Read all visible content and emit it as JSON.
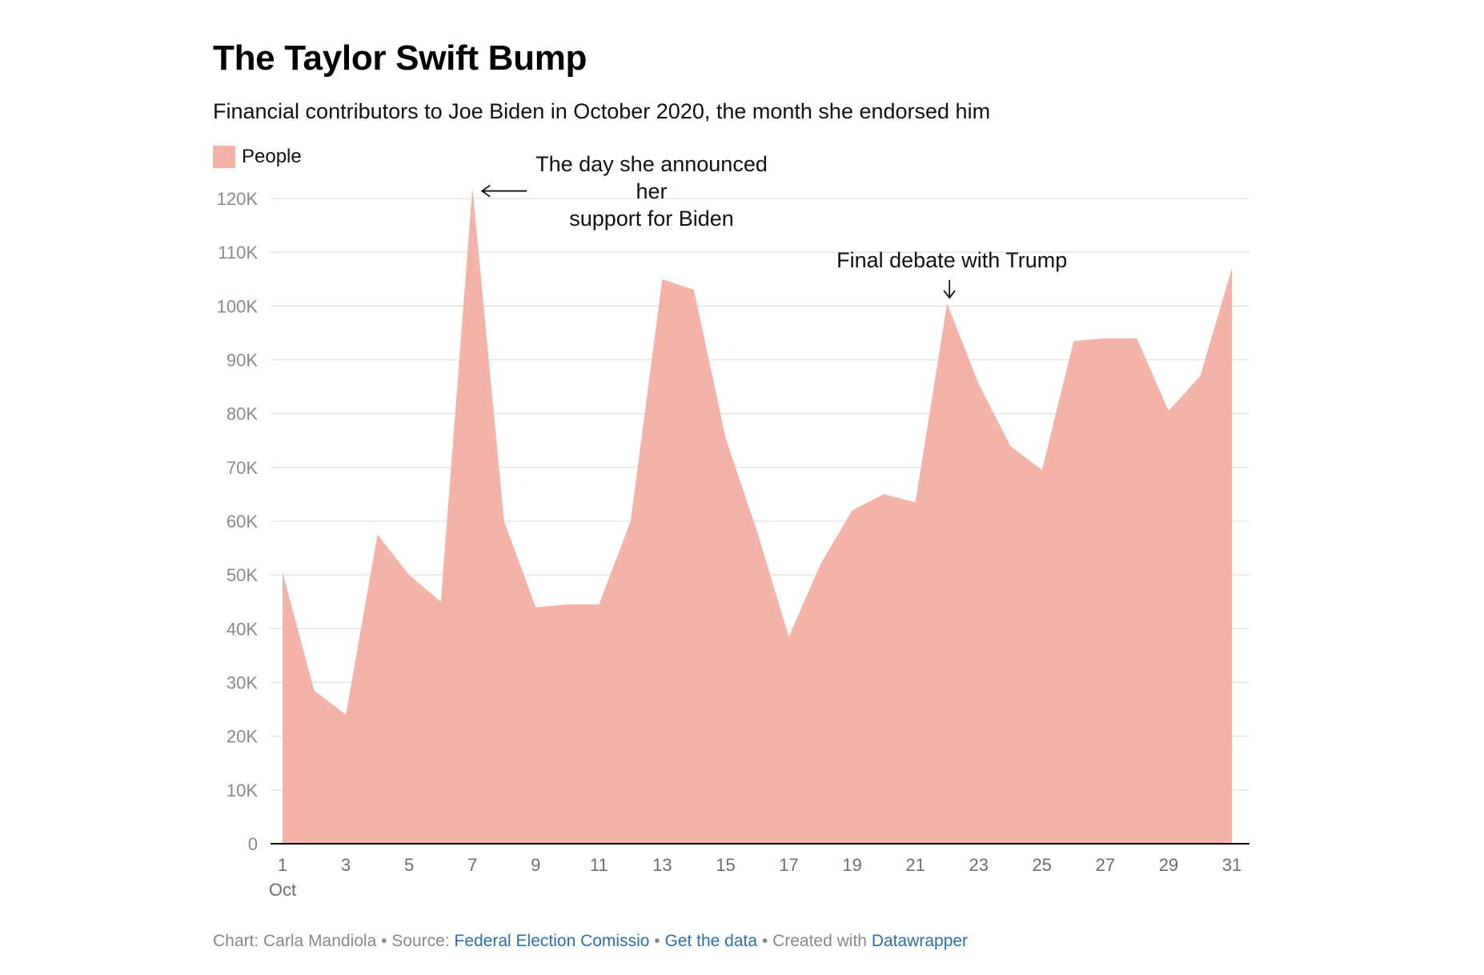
{
  "header": {
    "title": "The Taylor Swift Bump",
    "subtitle": "Financial contributors to Joe Biden in October 2020, the month she endorsed him"
  },
  "legend": {
    "label": "People",
    "color": "#f4b3a9"
  },
  "annotations": [
    {
      "lines": [
        "The day she announced",
        "her",
        "support for Biden"
      ],
      "x": 7,
      "arrow": "left"
    },
    {
      "lines": [
        "Final debate with Trump"
      ],
      "x": 22,
      "arrow": "down"
    }
  ],
  "footer": {
    "prefix": "Chart: Carla Mandiola • Source: ",
    "source_link": "Federal Election Comissio",
    "sep1": " • ",
    "data_link": "Get the data",
    "sep2": " • Created with ",
    "tool_link": "Datawrapper"
  },
  "chart_data": {
    "type": "area",
    "title": "The Taylor Swift Bump",
    "subtitle": "Financial contributors to Joe Biden in October 2020, the month she endorsed him",
    "xlabel": "",
    "ylabel": "",
    "x": [
      1,
      2,
      3,
      4,
      5,
      6,
      7,
      8,
      9,
      10,
      11,
      12,
      13,
      14,
      15,
      16,
      17,
      18,
      19,
      20,
      21,
      22,
      23,
      24,
      25,
      26,
      27,
      28,
      29,
      30,
      31
    ],
    "x_tick_values": [
      1,
      3,
      5,
      7,
      9,
      11,
      13,
      15,
      17,
      19,
      21,
      23,
      25,
      27,
      29,
      31
    ],
    "x_tick_labels": [
      "1",
      "3",
      "5",
      "7",
      "9",
      "11",
      "13",
      "15",
      "17",
      "19",
      "21",
      "23",
      "25",
      "27",
      "29",
      "31"
    ],
    "x_sublabel": "Oct",
    "y_ticks": [
      0,
      10000,
      20000,
      30000,
      40000,
      50000,
      60000,
      70000,
      80000,
      90000,
      100000,
      110000,
      120000
    ],
    "y_tick_labels": [
      "0",
      "10K",
      "20K",
      "30K",
      "40K",
      "50K",
      "60K",
      "70K",
      "80K",
      "90K",
      "100K",
      "110K",
      "120K"
    ],
    "ylim": [
      0,
      120000
    ],
    "grid": true,
    "legend_position": "top-left",
    "series": [
      {
        "name": "People",
        "color": "#f4b3a9",
        "values": [
          50500,
          28500,
          24000,
          57500,
          50000,
          45000,
          122000,
          60000,
          44000,
          44500,
          44500,
          60000,
          105000,
          103000,
          75500,
          58000,
          38500,
          52000,
          62000,
          65000,
          63500,
          100500,
          85500,
          74000,
          69500,
          93500,
          94000,
          94000,
          80500,
          87000,
          107000
        ]
      }
    ]
  }
}
